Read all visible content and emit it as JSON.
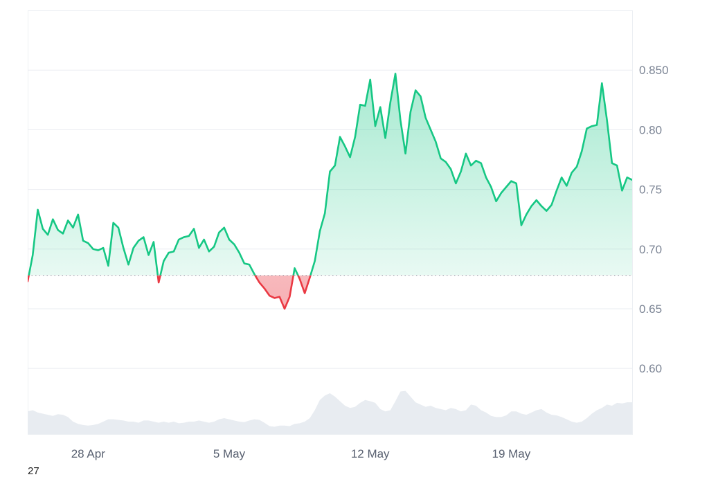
{
  "chart_data": {
    "type": "area",
    "title": "",
    "xlabel": "",
    "ylabel": "",
    "x_ticks": [
      "28 Apr",
      "5 May",
      "12 May",
      "19 May"
    ],
    "y_ticks": [
      "0.60",
      "0.65",
      "0.70",
      "0.75",
      "0.80",
      "0.850"
    ],
    "ylim": [
      0.545,
      0.9
    ],
    "xlim": [
      "2025-04-25",
      "2025-05-25"
    ],
    "baseline": 0.678,
    "grid": true,
    "colors": {
      "above": "#16c784",
      "below": "#ea3943",
      "above_fill": "#16c784",
      "below_fill": "#ea3943",
      "volume": "#e8ecf1",
      "baseline": "#8a919e"
    },
    "series": [
      {
        "x": [
          "2025-04-25 00:00",
          "2025-04-25 06:00",
          "2025-04-25 12:00",
          "2025-04-25 18:00",
          "2025-04-26 00:00",
          "2025-04-26 06:00",
          "2025-04-26 12:00",
          "2025-04-26 18:00",
          "2025-04-27 00:00",
          "2025-04-27 06:00",
          "2025-04-27 12:00",
          "2025-04-27 18:00",
          "2025-04-28 00:00",
          "2025-04-28 06:00",
          "2025-04-28 12:00",
          "2025-04-28 18:00",
          "2025-04-29 00:00",
          "2025-04-29 06:00",
          "2025-04-29 12:00",
          "2025-04-29 18:00",
          "2025-04-30 00:00",
          "2025-04-30 06:00",
          "2025-04-30 12:00",
          "2025-04-30 18:00",
          "2025-05-01 00:00",
          "2025-05-01 06:00",
          "2025-05-01 12:00",
          "2025-05-01 18:00",
          "2025-05-02 00:00",
          "2025-05-02 06:00",
          "2025-05-02 12:00",
          "2025-05-02 18:00",
          "2025-05-03 00:00",
          "2025-05-03 06:00",
          "2025-05-03 12:00",
          "2025-05-03 18:00",
          "2025-05-04 00:00",
          "2025-05-04 06:00",
          "2025-05-04 12:00",
          "2025-05-04 18:00",
          "2025-05-05 00:00",
          "2025-05-05 06:00",
          "2025-05-05 12:00",
          "2025-05-05 18:00",
          "2025-05-06 00:00",
          "2025-05-06 06:00",
          "2025-05-06 12:00",
          "2025-05-06 18:00",
          "2025-05-07 00:00",
          "2025-05-07 06:00",
          "2025-05-07 12:00",
          "2025-05-07 18:00",
          "2025-05-08 00:00",
          "2025-05-08 06:00",
          "2025-05-08 12:00",
          "2025-05-08 18:00",
          "2025-05-09 00:00",
          "2025-05-09 06:00",
          "2025-05-09 12:00",
          "2025-05-09 18:00",
          "2025-05-10 00:00",
          "2025-05-10 06:00",
          "2025-05-10 12:00",
          "2025-05-10 18:00",
          "2025-05-11 00:00",
          "2025-05-11 06:00",
          "2025-05-11 12:00",
          "2025-05-11 18:00",
          "2025-05-12 00:00",
          "2025-05-12 06:00",
          "2025-05-12 12:00",
          "2025-05-12 18:00",
          "2025-05-13 00:00",
          "2025-05-13 06:00",
          "2025-05-13 12:00",
          "2025-05-13 18:00",
          "2025-05-14 00:00",
          "2025-05-14 06:00",
          "2025-05-14 12:00",
          "2025-05-14 18:00",
          "2025-05-15 00:00",
          "2025-05-15 06:00",
          "2025-05-15 12:00",
          "2025-05-15 18:00",
          "2025-05-16 00:00",
          "2025-05-16 06:00",
          "2025-05-16 12:00",
          "2025-05-16 18:00",
          "2025-05-17 00:00",
          "2025-05-17 06:00",
          "2025-05-17 12:00",
          "2025-05-17 18:00",
          "2025-05-18 00:00",
          "2025-05-18 06:00",
          "2025-05-18 12:00",
          "2025-05-18 18:00",
          "2025-05-19 00:00",
          "2025-05-19 06:00",
          "2025-05-19 12:00",
          "2025-05-19 18:00",
          "2025-05-20 00:00",
          "2025-05-20 06:00",
          "2025-05-20 12:00",
          "2025-05-20 18:00",
          "2025-05-21 00:00",
          "2025-05-21 06:00",
          "2025-05-21 12:00",
          "2025-05-21 18:00",
          "2025-05-22 00:00",
          "2025-05-22 06:00",
          "2025-05-22 12:00",
          "2025-05-22 18:00",
          "2025-05-23 00:00",
          "2025-05-23 06:00",
          "2025-05-23 12:00",
          "2025-05-23 18:00",
          "2025-05-24 00:00",
          "2025-05-24 06:00",
          "2025-05-24 12:00",
          "2025-05-24 18:00",
          "2025-05-25 00:00"
        ],
        "values": [
          0.673,
          0.695,
          0.733,
          0.717,
          0.712,
          0.725,
          0.716,
          0.713,
          0.724,
          0.718,
          0.729,
          0.707,
          0.705,
          0.7,
          0.699,
          0.701,
          0.686,
          0.722,
          0.718,
          0.701,
          0.687,
          0.701,
          0.707,
          0.71,
          0.695,
          0.706,
          0.672,
          0.69,
          0.697,
          0.698,
          0.708,
          0.71,
          0.711,
          0.717,
          0.701,
          0.708,
          0.698,
          0.702,
          0.714,
          0.718,
          0.708,
          0.704,
          0.697,
          0.688,
          0.687,
          0.679,
          0.672,
          0.667,
          0.661,
          0.659,
          0.66,
          0.65,
          0.66,
          0.684,
          0.675,
          0.663,
          0.676,
          0.69,
          0.715,
          0.73,
          0.765,
          0.77,
          0.794,
          0.786,
          0.777,
          0.794,
          0.821,
          0.82,
          0.842,
          0.803,
          0.819,
          0.793,
          0.823,
          0.847,
          0.808,
          0.78,
          0.815,
          0.833,
          0.828,
          0.81,
          0.8,
          0.79,
          0.776,
          0.773,
          0.767,
          0.755,
          0.765,
          0.78,
          0.77,
          0.774,
          0.772,
          0.76,
          0.752,
          0.74,
          0.747,
          0.752,
          0.757,
          0.755,
          0.72,
          0.729,
          0.736,
          0.741,
          0.736,
          0.732,
          0.737,
          0.749,
          0.76,
          0.753,
          0.764,
          0.769,
          0.782,
          0.801,
          0.803,
          0.804,
          0.839,
          0.808,
          0.772,
          0.77,
          0.749,
          0.76,
          0.758
        ]
      }
    ],
    "volume": [
      0.4,
      0.42,
      0.38,
      0.36,
      0.34,
      0.32,
      0.35,
      0.34,
      0.3,
      0.22,
      0.18,
      0.16,
      0.15,
      0.16,
      0.18,
      0.22,
      0.26,
      0.26,
      0.25,
      0.24,
      0.22,
      0.22,
      0.2,
      0.24,
      0.24,
      0.22,
      0.2,
      0.22,
      0.2,
      0.22,
      0.19,
      0.2,
      0.22,
      0.22,
      0.24,
      0.22,
      0.2,
      0.22,
      0.26,
      0.28,
      0.26,
      0.24,
      0.22,
      0.21,
      0.24,
      0.26,
      0.25,
      0.2,
      0.14,
      0.13,
      0.15,
      0.15,
      0.14,
      0.18,
      0.19,
      0.22,
      0.28,
      0.42,
      0.6,
      0.68,
      0.72,
      0.66,
      0.58,
      0.5,
      0.46,
      0.48,
      0.55,
      0.6,
      0.58,
      0.55,
      0.44,
      0.4,
      0.42,
      0.58,
      0.75,
      0.76,
      0.66,
      0.56,
      0.52,
      0.48,
      0.5,
      0.46,
      0.44,
      0.42,
      0.46,
      0.44,
      0.4,
      0.42,
      0.52,
      0.5,
      0.42,
      0.38,
      0.32,
      0.3,
      0.3,
      0.33,
      0.4,
      0.4,
      0.36,
      0.34,
      0.38,
      0.42,
      0.44,
      0.38,
      0.34,
      0.33,
      0.3,
      0.26,
      0.22,
      0.2,
      0.22,
      0.28,
      0.36,
      0.42,
      0.46,
      0.52,
      0.5,
      0.55,
      0.54,
      0.56,
      0.56
    ]
  },
  "cropped_label": "27"
}
